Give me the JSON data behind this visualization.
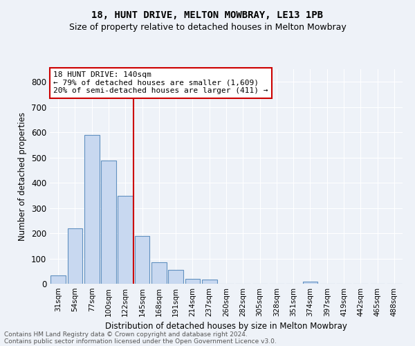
{
  "title1": "18, HUNT DRIVE, MELTON MOWBRAY, LE13 1PB",
  "title2": "Size of property relative to detached houses in Melton Mowbray",
  "xlabel": "Distribution of detached houses by size in Melton Mowbray",
  "ylabel": "Number of detached properties",
  "bar_labels": [
    "31sqm",
    "54sqm",
    "77sqm",
    "100sqm",
    "122sqm",
    "145sqm",
    "168sqm",
    "191sqm",
    "214sqm",
    "237sqm",
    "260sqm",
    "282sqm",
    "305sqm",
    "328sqm",
    "351sqm",
    "374sqm",
    "397sqm",
    "419sqm",
    "442sqm",
    "465sqm",
    "488sqm"
  ],
  "bar_values": [
    33,
    220,
    590,
    488,
    348,
    190,
    85,
    55,
    20,
    17,
    0,
    0,
    0,
    0,
    0,
    8,
    0,
    0,
    0,
    0,
    0
  ],
  "bar_color": "#c8d8f0",
  "bar_edgecolor": "#6090c0",
  "background_color": "#eef2f8",
  "grid_color": "#ffffff",
  "vline_x": 4.5,
  "vline_color": "#cc0000",
  "annotation_text": "18 HUNT DRIVE: 140sqm\n← 79% of detached houses are smaller (1,609)\n20% of semi-detached houses are larger (411) →",
  "annotation_box_edgecolor": "#cc0000",
  "ylim": [
    0,
    850
  ],
  "yticks": [
    0,
    100,
    200,
    300,
    400,
    500,
    600,
    700,
    800
  ],
  "footer1": "Contains HM Land Registry data © Crown copyright and database right 2024.",
  "footer2": "Contains public sector information licensed under the Open Government Licence v3.0."
}
